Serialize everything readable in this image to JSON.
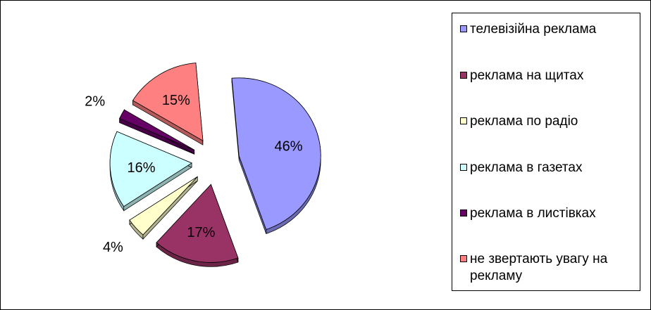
{
  "chart_data": {
    "type": "pie",
    "title": "",
    "exploded": true,
    "legend_position": "right",
    "slices": [
      {
        "label": "телевізійна реклама",
        "value": 46,
        "display": "46%",
        "color": "#9999FF",
        "dark": "#6B6BB3"
      },
      {
        "label": "реклама на щитах",
        "value": 17,
        "display": "17%",
        "color": "#993366",
        "dark": "#6B2447"
      },
      {
        "label": "реклама по радіо",
        "value": 4,
        "display": "4%",
        "color": "#FFFFCC",
        "dark": "#B3B38F"
      },
      {
        "label": "реклама в газетах",
        "value": 16,
        "display": "16%",
        "color": "#CCFFFF",
        "dark": "#8FB3B3"
      },
      {
        "label": "реклама в листівках",
        "value": 2,
        "display": "2%",
        "color": "#660066",
        "dark": "#470047"
      },
      {
        "label": "не звертають увагу на рекламу",
        "value": 15,
        "display": "15%",
        "color": "#FF8080",
        "dark": "#B35A5A"
      }
    ]
  }
}
